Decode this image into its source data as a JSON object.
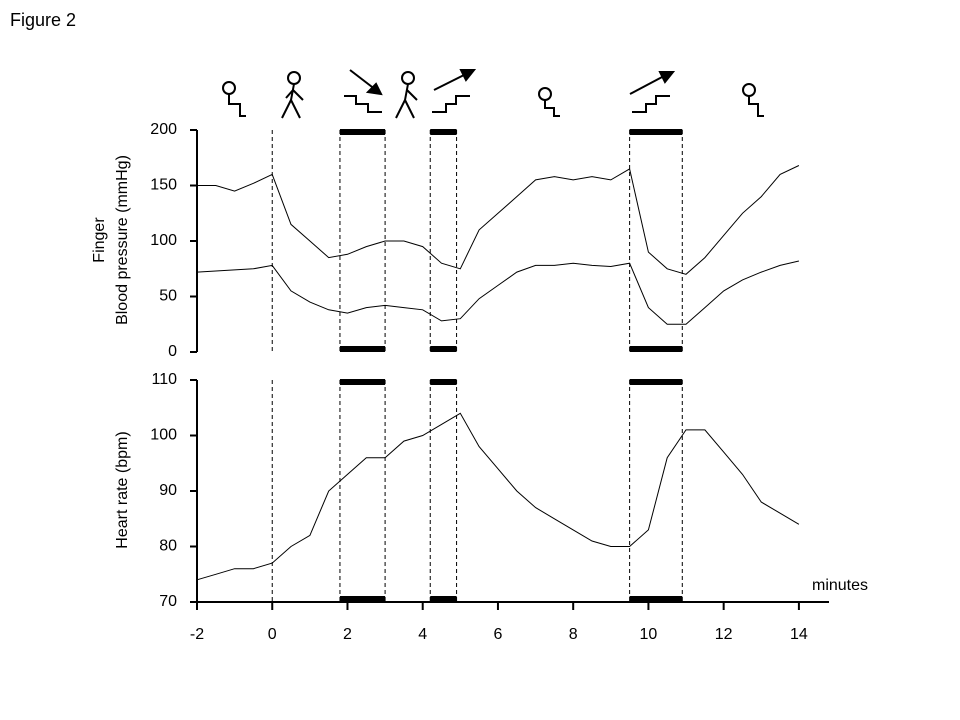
{
  "title": "Figure 2",
  "chart_data": [
    {
      "type": "line",
      "ylabel": [
        "Finger",
        "Blood pressure (mmHg)"
      ],
      "x": [
        -2,
        -1.5,
        -1,
        -0.5,
        0,
        0.5,
        1,
        1.5,
        2,
        2.5,
        3,
        3.5,
        4,
        4.5,
        5,
        5.5,
        6,
        6.5,
        7,
        7.5,
        8,
        8.5,
        9,
        9.5,
        10,
        10.5,
        11,
        11.5,
        12,
        12.5,
        13,
        13.5,
        14
      ],
      "series": [
        {
          "color": "#000000",
          "values": [
            150,
            150,
            145,
            152,
            160,
            115,
            100,
            85,
            88,
            95,
            100,
            100,
            95,
            80,
            75,
            110,
            125,
            140,
            155,
            158,
            155,
            158,
            155,
            165,
            90,
            75,
            70,
            85,
            105,
            125,
            140,
            160,
            168
          ]
        },
        {
          "color": "#000000",
          "values": [
            72,
            73,
            74,
            75,
            78,
            55,
            45,
            38,
            35,
            40,
            42,
            40,
            38,
            28,
            30,
            48,
            60,
            72,
            78,
            78,
            80,
            78,
            77,
            80,
            40,
            25,
            25,
            40,
            55,
            65,
            72,
            78,
            82
          ]
        }
      ],
      "xlim": [
        -2,
        14.8
      ],
      "ylim": [
        0,
        200
      ],
      "yticks": [
        0,
        50,
        100,
        150,
        200
      ],
      "vlines": [
        0,
        1.8,
        3.0,
        4.2,
        4.9,
        9.5,
        10.9
      ],
      "bars": [
        [
          1.8,
          3.0
        ],
        [
          4.2,
          4.9
        ],
        [
          9.5,
          10.9
        ]
      ]
    },
    {
      "type": "line",
      "ylabel": [
        "Heart rate (bpm)"
      ],
      "xlabel": "minutes",
      "x": [
        -2,
        -1.5,
        -1,
        -0.5,
        0,
        0.5,
        1,
        1.5,
        2,
        2.5,
        3,
        3.5,
        4,
        4.5,
        5,
        5.5,
        6,
        6.5,
        7,
        7.5,
        8,
        8.5,
        9,
        9.5,
        10,
        10.5,
        11,
        11.5,
        12,
        12.5,
        13,
        13.5,
        14
      ],
      "series": [
        {
          "color": "#000000",
          "values": [
            74,
            75,
            76,
            76,
            77,
            80,
            82,
            90,
            93,
            96,
            96,
            99,
            100,
            102,
            104,
            98,
            94,
            90,
            87,
            85,
            83,
            81,
            80,
            80,
            83,
            96,
            101,
            101,
            97,
            93,
            88,
            86,
            84
          ]
        }
      ],
      "xlim": [
        -2,
        14.8
      ],
      "ylim": [
        70,
        110
      ],
      "yticks": [
        70,
        80,
        90,
        100,
        110
      ],
      "xticks": [
        -2,
        0,
        2,
        4,
        6,
        8,
        10,
        12,
        14
      ],
      "vlines": [
        0,
        1.8,
        3.0,
        4.2,
        4.9,
        9.5,
        10.9
      ],
      "bars": [
        [
          1.8,
          3.0
        ],
        [
          4.2,
          4.9
        ],
        [
          9.5,
          10.9
        ]
      ]
    }
  ]
}
